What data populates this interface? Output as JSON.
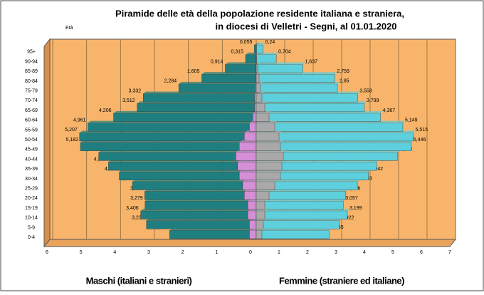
{
  "chart_data": {
    "type": "pyramid",
    "title": "Piramide delle età della popolazione residente italiana e straniera,",
    "subtitle": "in diocesi di Velletri - Segni, al 01.01.2020",
    "y_label": "Età",
    "categories": [
      "0-4",
      "5-9",
      "10-14",
      "15-19",
      "20-24",
      "25-29",
      "30-34",
      "35-39",
      "40-44",
      "45-49",
      "50-54",
      "55-59",
      "60-64",
      "65-69",
      "70-74",
      "75-79",
      "80-84",
      "85-89",
      "90-94",
      "95+"
    ],
    "series": [
      {
        "name": "Maschi (italiani e stranieri)",
        "side": "left",
        "color": "#1f7f80",
        "values": [
          2.552,
          3.237,
          3.406,
          3.279,
          3.286,
          3.65,
          4.038,
          4.357,
          4.644,
          5.182,
          5.207,
          4.961,
          4.206,
          3.512,
          3.332,
          2.284,
          1.605,
          0.914,
          0.315,
          0.055
        ],
        "value_labels": [
          "2,552",
          "3,237",
          "3,406",
          "3,279",
          "3,286",
          "3,65",
          "4,038",
          "4,357",
          "4,644",
          "5,182",
          "5,207",
          "4,961",
          "4,206",
          "3,512",
          "3,332",
          "2,284",
          "1,605",
          "0,914",
          "0,315",
          "0,055"
        ]
      },
      {
        "side": "left",
        "color": "#d48fd6",
        "values": [
          0.2,
          0.2,
          0.25,
          0.25,
          0.35,
          0.4,
          0.5,
          0.55,
          0.6,
          0.5,
          0.35,
          0.2,
          0.1,
          0.05,
          0.05,
          0.03,
          0.02,
          0.01,
          0.01,
          0
        ]
      },
      {
        "name": "Femmine (straniere ed italiane)",
        "side": "right",
        "color": "#5ecfdc",
        "values": [
          2.555,
          2.922,
          3.199,
          3.057,
          3.146,
          3.553,
          3.942,
          4.232,
          4.959,
          5.446,
          5.515,
          5.149,
          4.367,
          3.799,
          3.558,
          2.85,
          2.759,
          1.637,
          0.704,
          0.24
        ],
        "value_labels": [
          "2,555",
          "2,922",
          "3,199",
          "3,057",
          "3,146",
          "3,553",
          "3,942",
          "4,232",
          "4,959",
          "5,446",
          "5,515",
          "5,149",
          "4,367",
          "3,799",
          "3,558",
          "2,85",
          "2,759",
          "1,637",
          "0,704",
          "0,24"
        ]
      },
      {
        "side": "right",
        "color": "#a9a9a9",
        "values": [
          0.2,
          0.25,
          0.3,
          0.3,
          0.45,
          0.65,
          0.85,
          0.9,
          0.95,
          0.85,
          0.8,
          0.65,
          0.45,
          0.3,
          0.2,
          0.15,
          0.1,
          0.05,
          0.02,
          0.01
        ]
      }
    ],
    "left_xlim": [
      0,
      6
    ],
    "left_xticks": [
      0,
      1,
      2,
      3,
      4,
      5,
      6
    ],
    "right_xlim": [
      0,
      7
    ],
    "right_xticks": [
      0,
      1,
      2,
      3,
      4,
      5,
      6,
      7
    ],
    "grid": true
  }
}
